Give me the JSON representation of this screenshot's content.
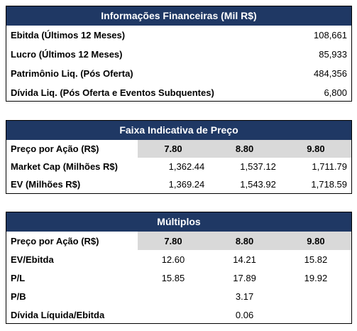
{
  "financial_info": {
    "title": "Informações Financeiras (Mil R$)",
    "rows": [
      {
        "label": "Ebitda (Últimos 12 Meses)",
        "value": "108,661"
      },
      {
        "label": "Lucro (Últimos 12 Meses)",
        "value": "85,933"
      },
      {
        "label": "Patrimônio Liq. (Pós Oferta)",
        "value": "484,356"
      },
      {
        "label": "Dívida Liq. (Pós Oferta e Eventos Subquentes)",
        "value": "6,800"
      }
    ]
  },
  "price_range": {
    "title": "Faixa Indicativa de Preço",
    "header_label": "Preço por Ação (R$)",
    "prices": [
      "7.80",
      "8.80",
      "9.80"
    ],
    "rows": [
      {
        "label": "Market Cap (Milhões R$)",
        "values": [
          "1,362.44",
          "1,537.12",
          "1,711.79"
        ]
      },
      {
        "label": "EV (Milhões R$)",
        "values": [
          "1,369.24",
          "1,543.92",
          "1,718.59"
        ]
      }
    ]
  },
  "multiples": {
    "title": "Múltiplos",
    "header_label": "Preço por Ação (R$)",
    "prices": [
      "7.80",
      "8.80",
      "9.80"
    ],
    "rows": [
      {
        "label": "EV/Ebitda",
        "values": [
          "12.60",
          "14.21",
          "15.82"
        ]
      },
      {
        "label": "P/L",
        "values": [
          "15.85",
          "17.89",
          "19.92"
        ]
      }
    ],
    "single_rows": [
      {
        "label": "P/B",
        "value": "3.17"
      },
      {
        "label": "Dívida Líquida/Ebitda",
        "value": "0.06"
      }
    ]
  },
  "colors": {
    "header_bg": "#1f3864",
    "header_text": "#ffffff",
    "price_header_bg": "#d9d9d9"
  }
}
